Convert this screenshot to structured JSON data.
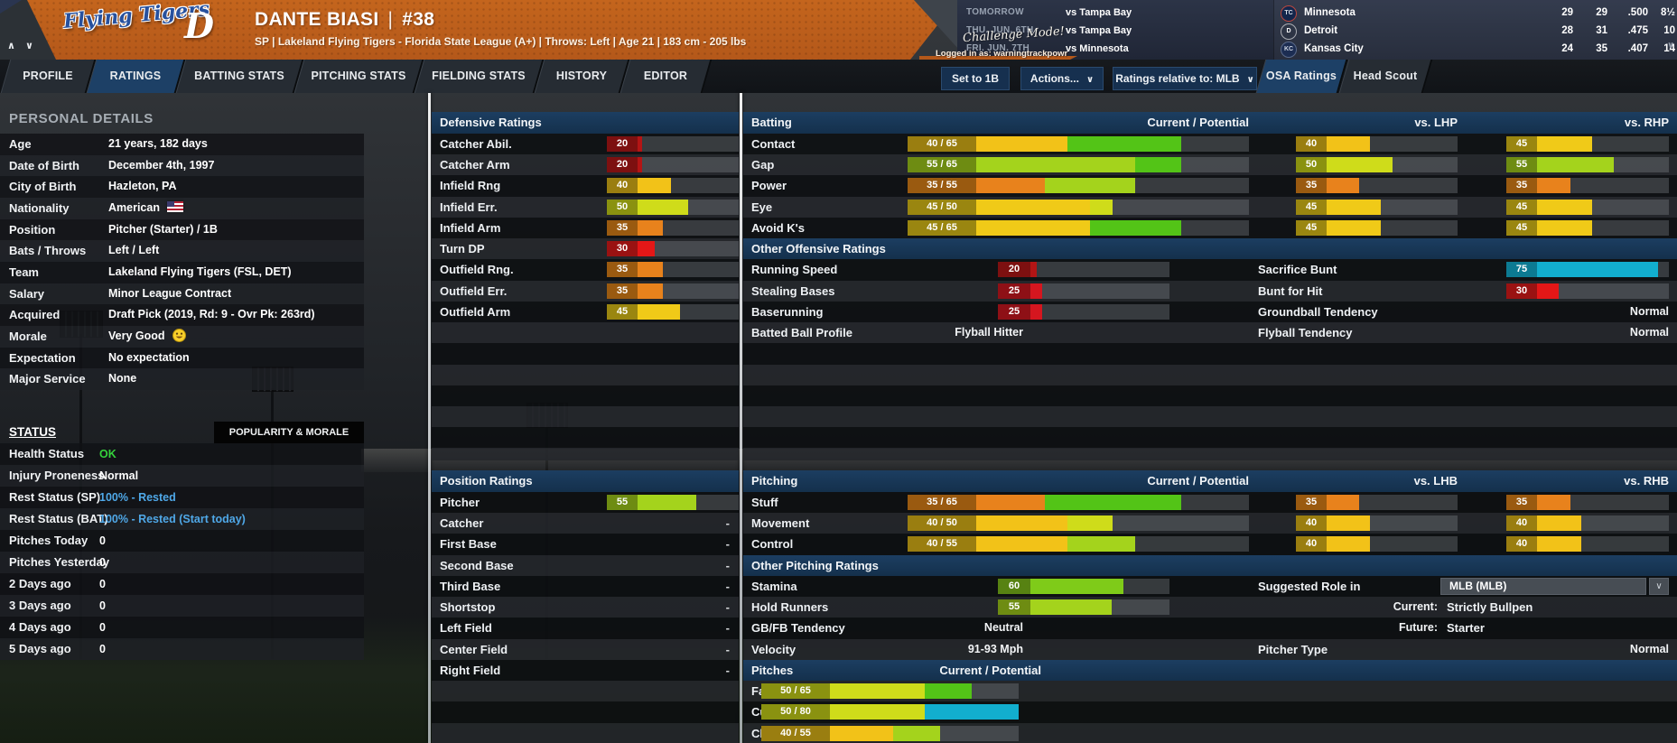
{
  "banner": {
    "team_script": "Flying Tigers",
    "team_letter": "D",
    "player_name": "DANTE BIASI",
    "player_number": "#38",
    "player_subtitle": "SP | Lakeland Flying Tigers - Florida State League (A+)  |  Throws: Left  |  Age 21  |  183 cm - 205 lbs",
    "challenge_mode": "Challenge Mode!",
    "logged_in": "Logged in as: warningtrackpowr",
    "nav_arrows": "∧ ∨",
    "schedule": [
      {
        "label": "TOMORROW",
        "opponent": "vs Tampa Bay"
      },
      {
        "label": "THU. JUN. 6TH",
        "opponent": "vs Tampa Bay"
      },
      {
        "label": "FRI. JUN. 7TH",
        "opponent": "vs Minnesota"
      }
    ],
    "standings": [
      {
        "abbr": "TC",
        "team": "Minnesota",
        "w": "29",
        "l": "29",
        "pct": ".500",
        "gb": "8½"
      },
      {
        "abbr": "D",
        "team": "Detroit",
        "w": "28",
        "l": "31",
        "pct": ".475",
        "gb": "10"
      },
      {
        "abbr": "KC",
        "team": "Kansas City",
        "w": "24",
        "l": "35",
        "pct": ".407",
        "gb": "14"
      }
    ]
  },
  "tabs": {
    "items": [
      "PROFILE",
      "RATINGS",
      "BATTING STATS",
      "PITCHING STATS",
      "FIELDING STATS",
      "HISTORY",
      "EDITOR"
    ],
    "active": "RATINGS"
  },
  "toolbar": {
    "set_position": "Set to 1B",
    "actions": "Actions...",
    "ratings_relative": "Ratings relative to: MLB",
    "scout_tabs": [
      "OSA Ratings",
      "Head Scout"
    ],
    "active_scout": "OSA Ratings"
  },
  "personal": {
    "title": "PERSONAL DETAILS",
    "rows": [
      {
        "label": "Age",
        "value": "21 years, 182 days"
      },
      {
        "label": "Date of Birth",
        "value": "December 4th, 1997"
      },
      {
        "label": "City of Birth",
        "value": "Hazleton, PA"
      },
      {
        "label": "Nationality",
        "value": "American",
        "icon": "us-flag-icon"
      },
      {
        "label": "Position",
        "value": "Pitcher (Starter) / 1B"
      },
      {
        "label": "Bats / Throws",
        "value": "Left / Left"
      },
      {
        "label": "Team",
        "value": "Lakeland Flying Tigers (FSL, DET)"
      },
      {
        "label": "Salary",
        "value": "Minor League Contract"
      },
      {
        "label": "Acquired",
        "value": "Draft Pick (2019, Rd: 9 - Ovr Pk: 263rd)"
      },
      {
        "label": "Morale",
        "value": "Very Good",
        "icon": "very-good-morale-icon"
      },
      {
        "label": "Expectation",
        "value": "No expectation"
      },
      {
        "label": "Major Service",
        "value": "None"
      }
    ]
  },
  "status": {
    "title": "STATUS",
    "tab": "POPULARITY & MORALE",
    "rows": [
      {
        "label": "Health Status",
        "value": "OK",
        "color": "#35d23c"
      },
      {
        "label": "Injury Proneness",
        "value": "Normal",
        "color": "#ffffff"
      },
      {
        "label": "Rest Status (SP)",
        "value": "100% - Rested",
        "color": "#4fa8e8"
      },
      {
        "label": "Rest Status (BAT)",
        "value": "100% - Rested (Start today)",
        "color": "#4fa8e8"
      },
      {
        "label": "Pitches Today",
        "value": "0",
        "color": "#ffffff"
      },
      {
        "label": "Pitches Yesterday",
        "value": "0",
        "color": "#ffffff"
      },
      {
        "label": "2 Days ago",
        "value": "0",
        "color": "#ffffff"
      },
      {
        "label": "3 Days ago",
        "value": "0",
        "color": "#ffffff"
      },
      {
        "label": "4 Days ago",
        "value": "0",
        "color": "#ffffff"
      },
      {
        "label": "5 Days ago",
        "value": "0",
        "color": "#ffffff"
      }
    ]
  },
  "ratings_scale": {
    "min": 20,
    "max": 80
  },
  "colors": {
    "20": {
      "fill": "#b31515",
      "box": "#7d1010"
    },
    "25": {
      "fill": "#d5161f",
      "box": "#8e1016"
    },
    "30": {
      "fill": "#e41717",
      "box": "#9a1212"
    },
    "35": {
      "fill": "#e8821c",
      "box": "#9a5a10"
    },
    "40": {
      "fill": "#f2c218",
      "box": "#9a7e10"
    },
    "45": {
      "fill": "#f0ca18",
      "box": "#9a8610"
    },
    "50": {
      "fill": "#cfdc1a",
      "box": "#8a9210"
    },
    "55": {
      "fill": "#a4d31c",
      "box": "#6e8c12"
    },
    "60": {
      "fill": "#7fcb19",
      "box": "#578212"
    },
    "65": {
      "fill": "#53c417",
      "box": "#3e7e10"
    },
    "75": {
      "fill": "#12aece",
      "box": "#0c7a92"
    },
    "80": {
      "fill": "#12aece",
      "box": "#0c7a92"
    }
  },
  "defense": {
    "title": "Defensive Ratings",
    "rows": [
      {
        "label": "Catcher Abil.",
        "value": 20
      },
      {
        "label": "Catcher Arm",
        "value": 20
      },
      {
        "label": "Infield Rng",
        "value": 40
      },
      {
        "label": "Infield Err.",
        "value": 50
      },
      {
        "label": "Infield Arm",
        "value": 35
      },
      {
        "label": "Turn DP",
        "value": 30
      },
      {
        "label": "Outfield Rng.",
        "value": 35
      },
      {
        "label": "Outfield Err.",
        "value": 35
      },
      {
        "label": "Outfield Arm",
        "value": 45
      }
    ]
  },
  "positions": {
    "title": "Position Ratings",
    "rows": [
      {
        "label": "Pitcher",
        "value": 55
      },
      {
        "label": "Catcher",
        "value": null
      },
      {
        "label": "First Base",
        "value": null
      },
      {
        "label": "Second Base",
        "value": null
      },
      {
        "label": "Third Base",
        "value": null
      },
      {
        "label": "Shortstop",
        "value": null
      },
      {
        "label": "Left Field",
        "value": null
      },
      {
        "label": "Center Field",
        "value": null
      },
      {
        "label": "Right Field",
        "value": null
      }
    ]
  },
  "batting": {
    "title": "Batting",
    "cp_header": "Current / Potential",
    "vs_left_header": "vs. LHP",
    "vs_right_header": "vs. RHP",
    "rows": [
      {
        "label": "Contact",
        "cur": 40,
        "pot": 65,
        "vsl": 40,
        "vsr": 45
      },
      {
        "label": "Gap",
        "cur": 55,
        "pot": 65,
        "vsl": 50,
        "vsr": 55
      },
      {
        "label": "Power",
        "cur": 35,
        "pot": 55,
        "vsl": 35,
        "vsr": 35
      },
      {
        "label": "Eye",
        "cur": 45,
        "pot": 50,
        "vsl": 45,
        "vsr": 45
      },
      {
        "label": "Avoid K's",
        "cur": 45,
        "pot": 65,
        "vsl": 45,
        "vsr": 45
      }
    ],
    "other_title": "Other Offensive Ratings",
    "other_rows": [
      {
        "left_label": "Running Speed",
        "left_value": 20,
        "right_label": "Sacrifice Bunt",
        "right_value": 75
      },
      {
        "left_label": "Stealing Bases",
        "left_value": 25,
        "right_label": "Bunt for Hit",
        "right_value": 30
      },
      {
        "left_label": "Baserunning",
        "left_value": 25,
        "right_label": "Groundball Tendency",
        "right_text": "Normal"
      },
      {
        "left_label": "Batted Ball Profile",
        "left_text": "Flyball Hitter",
        "right_label": "Flyball Tendency",
        "right_text": "Normal"
      }
    ]
  },
  "pitching": {
    "title": "Pitching",
    "cp_header": "Current / Potential",
    "vs_left_header": "vs. LHB",
    "vs_right_header": "vs. RHB",
    "rows": [
      {
        "label": "Stuff",
        "cur": 35,
        "pot": 65,
        "vsl": 35,
        "vsr": 35
      },
      {
        "label": "Movement",
        "cur": 40,
        "pot": 50,
        "vsl": 40,
        "vsr": 40
      },
      {
        "label": "Control",
        "cur": 40,
        "pot": 55,
        "vsl": 40,
        "vsr": 40
      }
    ],
    "other_title": "Other Pitching Ratings",
    "other_rows": [
      {
        "left_label": "Stamina",
        "left_value": 60,
        "right_label": "Suggested Role in",
        "right_dropdown": "MLB (MLB)"
      },
      {
        "left_label": "Hold Runners",
        "left_value": 55,
        "right_info_label": "Current:",
        "right_info_value": "Strictly Bullpen"
      },
      {
        "left_label": "GB/FB Tendency",
        "left_text": "Neutral",
        "right_info_label": "Future:",
        "right_info_value": "Starter"
      },
      {
        "left_label": "Velocity",
        "left_text": "91-93 Mph",
        "right_label": "Pitcher Type",
        "right_text": "Normal"
      }
    ],
    "pitches_title": "Pitches",
    "pitches_header": "Current / Potential",
    "pitches": [
      {
        "label": "Fastball",
        "cur": 50,
        "pot": 65
      },
      {
        "label": "Curveball",
        "cur": 50,
        "pot": 80
      },
      {
        "label": "Changeup",
        "cur": 40,
        "pot": 55
      }
    ]
  }
}
